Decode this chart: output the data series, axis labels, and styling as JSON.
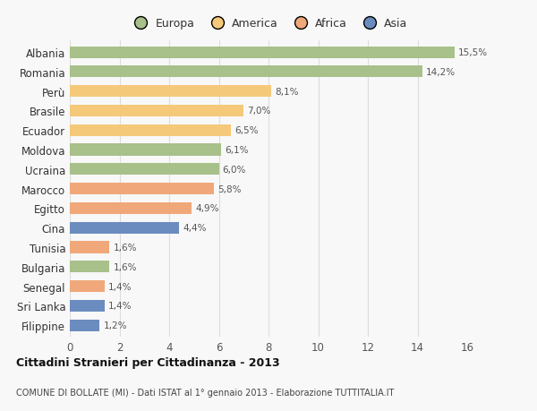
{
  "categories": [
    "Albania",
    "Romania",
    "Perù",
    "Brasile",
    "Ecuador",
    "Moldova",
    "Ucraina",
    "Marocco",
    "Egitto",
    "Cina",
    "Tunisia",
    "Bulgaria",
    "Senegal",
    "Sri Lanka",
    "Filippine"
  ],
  "values": [
    15.5,
    14.2,
    8.1,
    7.0,
    6.5,
    6.1,
    6.0,
    5.8,
    4.9,
    4.4,
    1.6,
    1.6,
    1.4,
    1.4,
    1.2
  ],
  "labels": [
    "15,5%",
    "14,2%",
    "8,1%",
    "7,0%",
    "6,5%",
    "6,1%",
    "6,0%",
    "5,8%",
    "4,9%",
    "4,4%",
    "1,6%",
    "1,6%",
    "1,4%",
    "1,4%",
    "1,2%"
  ],
  "colors": [
    "#a8c08a",
    "#a8c08a",
    "#f5c97a",
    "#f5c97a",
    "#f5c97a",
    "#a8c08a",
    "#a8c08a",
    "#f0a87a",
    "#f0a87a",
    "#6b8cbf",
    "#f0a87a",
    "#a8c08a",
    "#f0a87a",
    "#6b8cbf",
    "#6b8cbf"
  ],
  "legend_labels": [
    "Europa",
    "America",
    "Africa",
    "Asia"
  ],
  "legend_colors": [
    "#a8c08a",
    "#f5c97a",
    "#f0a87a",
    "#6b8cbf"
  ],
  "xlim": [
    0,
    16
  ],
  "xticks": [
    0,
    2,
    4,
    6,
    8,
    10,
    12,
    14,
    16
  ],
  "title": "Cittadini Stranieri per Cittadinanza - 2013",
  "subtitle": "COMUNE DI BOLLATE (MI) - Dati ISTAT al 1° gennaio 2013 - Elaborazione TUTTITALIA.IT",
  "bg_color": "#f8f8f8",
  "grid_color": "#dddddd"
}
